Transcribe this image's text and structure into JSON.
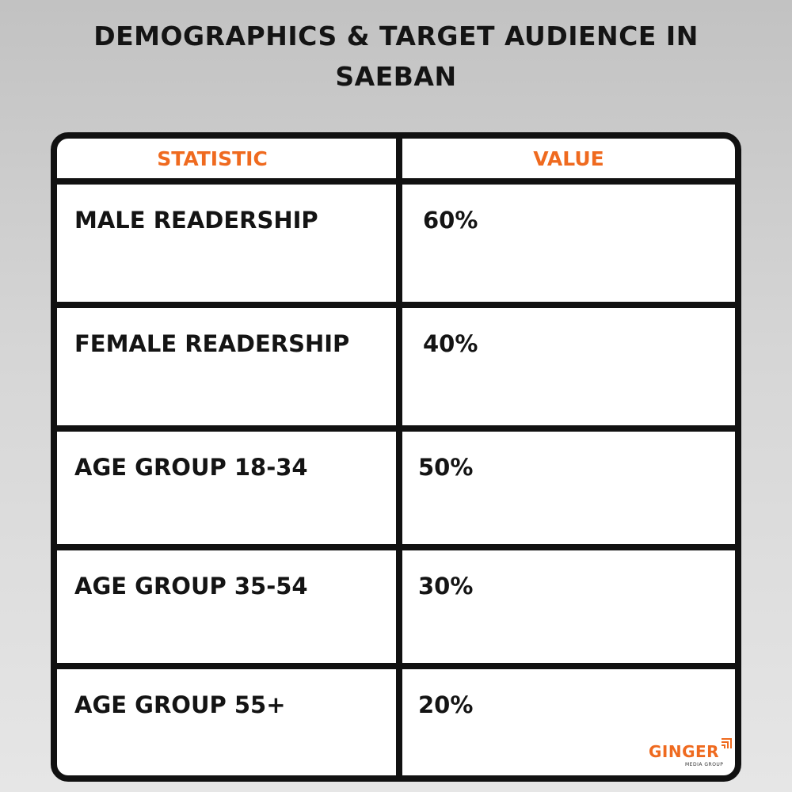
{
  "title": "DEMOGRAPHICS & TARGET AUDIENCE IN SAEBAN",
  "title_line1": "DEMOGRAPHICS & TARGET AUDIENCE IN",
  "title_line2": "SAEBAN",
  "table": {
    "headers": {
      "statistic": "STATISTIC",
      "value": "VALUE"
    },
    "rows": [
      {
        "statistic": "MALE READERSHIP",
        "value": "60%"
      },
      {
        "statistic": "FEMALE READERSHIP",
        "value": "40%"
      },
      {
        "statistic": "AGE GROUP 18-34",
        "value": "50%"
      },
      {
        "statistic": "AGE GROUP 35-54",
        "value": "30%"
      },
      {
        "statistic": "AGE GROUP 55+",
        "value": "20%"
      }
    ]
  },
  "logo": {
    "name": "GINGER",
    "subtitle": "MEDIA GROUP"
  },
  "colors": {
    "accent": "#ef6a1f",
    "text": "#141414",
    "border": "#111111",
    "background_top": "#c2c2c2",
    "background_bottom": "#e6e6e6"
  }
}
